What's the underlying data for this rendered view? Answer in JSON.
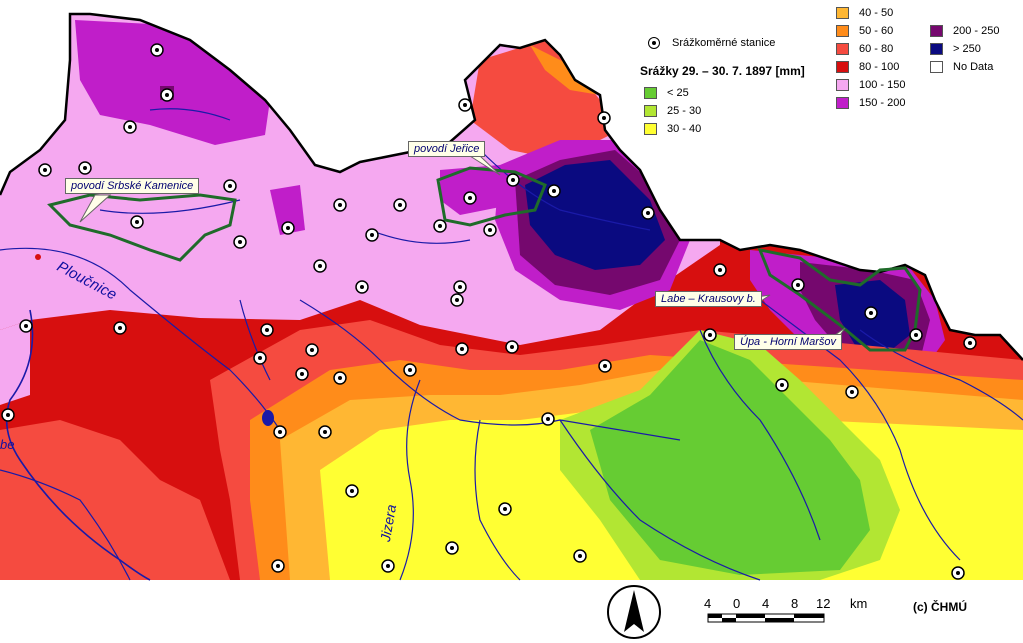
{
  "legend": {
    "title": "Srážky 29. – 30. 7. 1897 [mm]",
    "station_label": "Srážkoměrné stanice",
    "classes": [
      {
        "label": "< 25",
        "color": "#66cc33"
      },
      {
        "label": "25 - 30",
        "color": "#b2e633"
      },
      {
        "label": "30 - 40",
        "color": "#ffff33"
      },
      {
        "label": "40 - 50",
        "color": "#ffb733"
      },
      {
        "label": "50 - 60",
        "color": "#ff8c1a"
      },
      {
        "label": "60 - 80",
        "color": "#f54b40"
      },
      {
        "label": "80 - 100",
        "color": "#d70f0f"
      },
      {
        "label": "100 - 150",
        "color": "#f5a8f0"
      },
      {
        "label": "150 - 200",
        "color": "#c01ec9"
      },
      {
        "label": "200 - 250",
        "color": "#75086e"
      },
      {
        "label": "> 250",
        "color": "#0a0a80"
      },
      {
        "label": "No Data",
        "color": "#ffffff"
      }
    ]
  },
  "callouts": {
    "srbske": "povodí Srbské Kamenice",
    "jerice": "povodí Jeřice",
    "labe": "Labe – Krausovy b.",
    "upa": "Úpa - Horní Maršov"
  },
  "rivers": {
    "ploucnice": "Ploučnice",
    "jizera": "Jizera",
    "labe_fragment": "be"
  },
  "scalebar": {
    "ticks": [
      "4",
      "0",
      "4",
      "8",
      "12"
    ],
    "unit": "km"
  },
  "copyright": "(c) ČHMÚ",
  "north_arrow": "north-arrow-icon"
}
